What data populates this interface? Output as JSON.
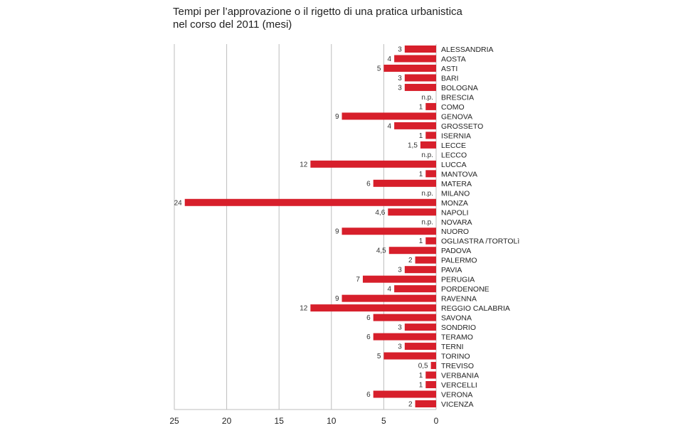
{
  "chart_data": {
    "type": "bar",
    "orientation": "horizontal",
    "title": "Tempi per l’approvazione o il rigetto di una pratica urbanistica",
    "subtitle": "nel corso del 2011 (mesi)",
    "xlim": [
      0,
      25
    ],
    "x_reversed": true,
    "xticks": [
      "25",
      "20",
      "15",
      "10",
      "5",
      "0"
    ],
    "grid": true,
    "bar_color": "#d71f2b",
    "categories": [
      "ALESSANDRIA",
      "AOSTA",
      "ASTI",
      "BARI",
      "BOLOGNA",
      "BRESCIA",
      "COMO",
      "GENOVA",
      "GROSSETO",
      "ISERNIA",
      "LECCE",
      "LECCO",
      "LUCCA",
      "MANTOVA",
      "MATERA",
      "MILANO",
      "MONZA",
      "NAPOLI",
      "NOVARA",
      "NUORO",
      "OGLIASTRA /TORTOLì",
      "PADOVA",
      "PALERMO",
      "PAVIA",
      "PERUGIA",
      "PORDENONE",
      "RAVENNA",
      "REGGIO CALABRIA",
      "SAVONA",
      "SONDRIO",
      "TERAMO",
      "TERNI",
      "TORINO",
      "TREVISO",
      "VERBANIA",
      "VERCELLI",
      "VERONA",
      "VICENZA"
    ],
    "values": [
      3,
      4,
      5,
      3,
      3,
      null,
      1,
      9,
      4,
      1,
      1.5,
      null,
      12,
      1,
      6,
      null,
      24,
      4.6,
      null,
      9,
      1,
      4.5,
      2,
      3,
      7,
      4,
      9,
      12,
      6,
      3,
      6,
      3,
      5,
      0.5,
      1,
      1,
      6,
      2
    ],
    "value_labels": [
      "3",
      "4",
      "5",
      "3",
      "3",
      "n.p.",
      "1",
      "9",
      "4",
      "1",
      "1,5",
      "n.p.",
      "12",
      "1",
      "6",
      "n.p.",
      "24",
      "4,6",
      "n.p.",
      "9",
      "1",
      "4,5",
      "2",
      "3",
      "7",
      "4",
      "9",
      "12",
      "6",
      "3",
      "6",
      "3",
      "5",
      "0,5",
      "1",
      "1",
      "6",
      "2"
    ]
  }
}
